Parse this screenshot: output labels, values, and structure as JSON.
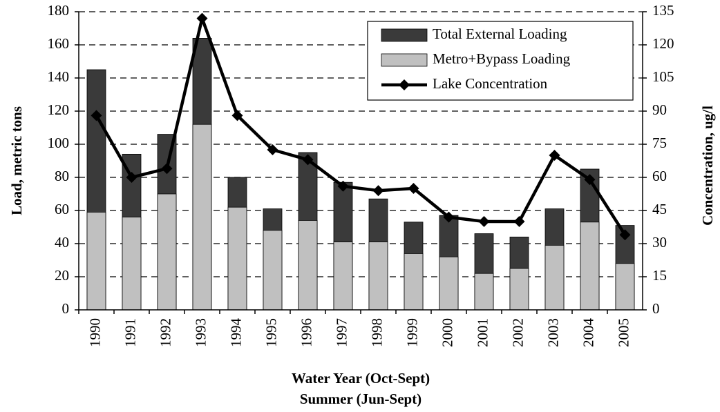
{
  "chart_data": {
    "type": "bar",
    "bar_mode": "overlay",
    "x_label": [
      "Water Year (Oct-Sept)",
      "Summer (Jun-Sept)"
    ],
    "y_label": "Load, metric tons",
    "y2_label": "Concentration, ug/l",
    "categories": [
      "1990",
      "1991",
      "1992",
      "1993",
      "1994",
      "1995",
      "1996",
      "1997",
      "1998",
      "1999",
      "2000",
      "2001",
      "2002",
      "2003",
      "2004",
      "2005"
    ],
    "series": [
      {
        "name": "Total External Loading",
        "type": "bar",
        "color": "#3a3a3a",
        "values": [
          145,
          94,
          106,
          164,
          80,
          61,
          95,
          77,
          67,
          53,
          57,
          46,
          44,
          61,
          85,
          51
        ]
      },
      {
        "name": "Metro+Bypass Loading",
        "type": "bar",
        "color": "#c0c0c0",
        "values": [
          59,
          56,
          70,
          112,
          62,
          48,
          54,
          41,
          41,
          34,
          32,
          22,
          25,
          39,
          53,
          28
        ]
      },
      {
        "name": "Lake Concentration",
        "type": "line",
        "axis": "y2",
        "color": "#000000",
        "values": [
          88,
          60,
          64,
          132,
          88,
          72.5,
          68,
          56,
          54,
          55,
          42,
          40,
          40,
          70,
          59,
          34
        ]
      }
    ],
    "ylim": [
      0,
      180
    ],
    "yticks": [
      0,
      20,
      40,
      60,
      80,
      100,
      120,
      140,
      160,
      180
    ],
    "y2lim": [
      0,
      135
    ],
    "y2ticks": [
      0,
      15,
      30,
      45,
      60,
      75,
      90,
      105,
      120,
      135
    ],
    "grid": true,
    "legend": "top-right"
  }
}
